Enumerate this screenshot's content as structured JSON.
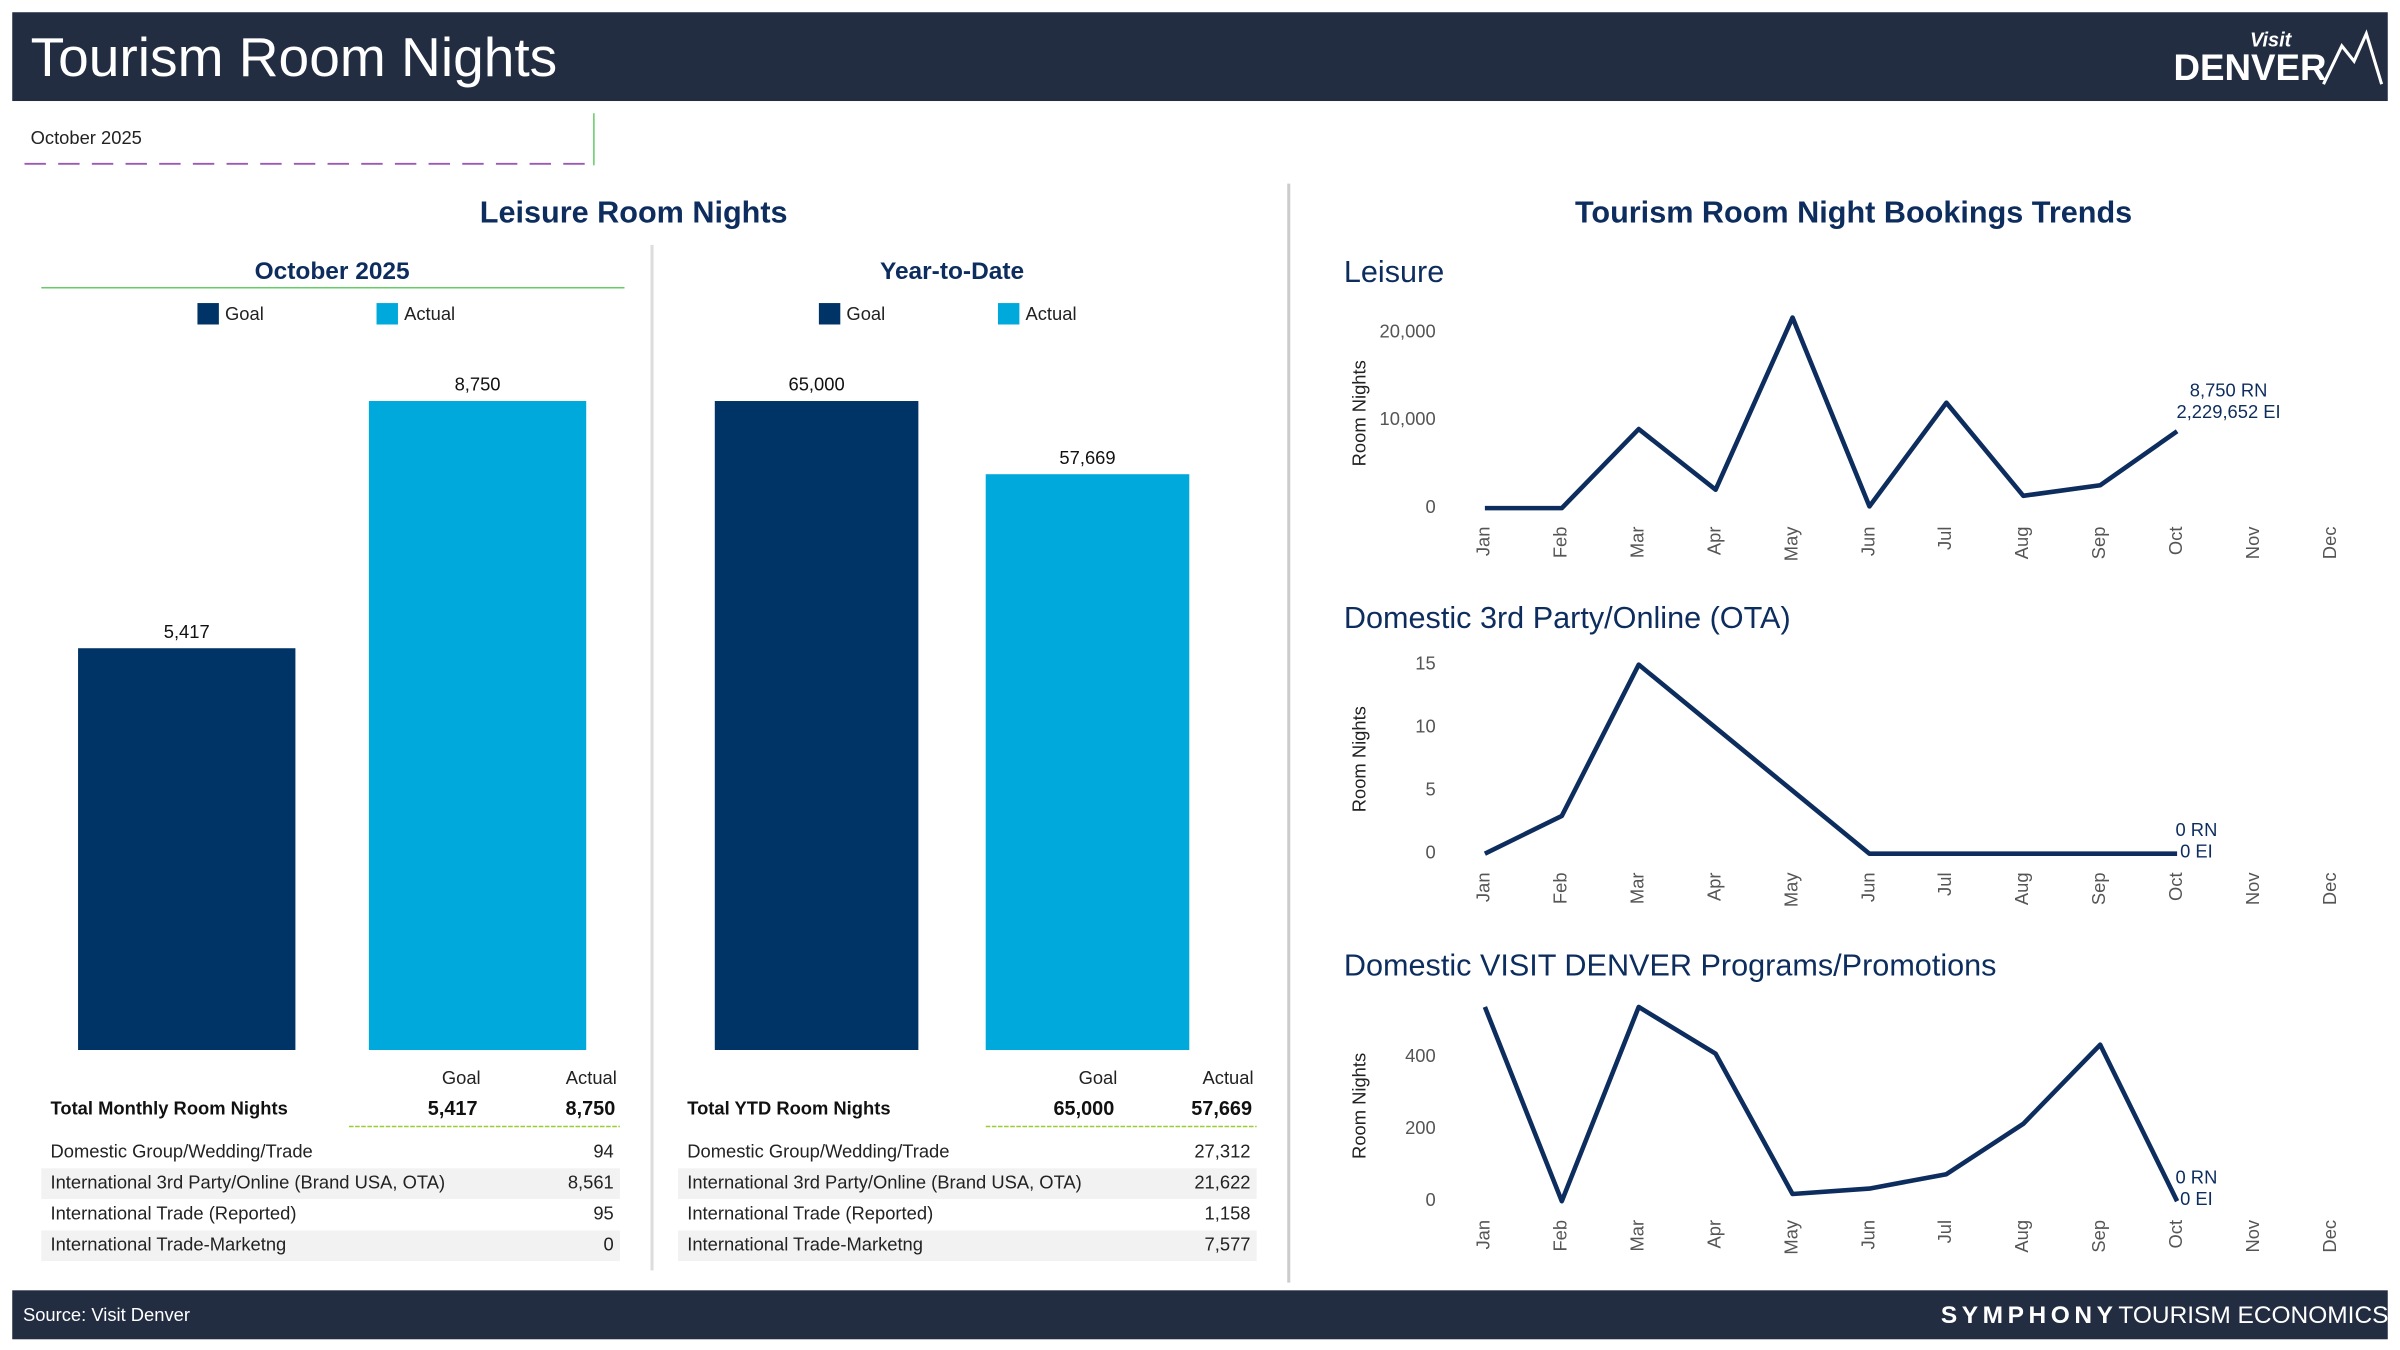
{
  "header": {
    "title": "Tourism Room Nights",
    "logo_top": "Visit",
    "logo_main": "DENVER",
    "filter": "October 2025"
  },
  "left_panel": {
    "title": "Leisure Room Nights"
  },
  "right_panel": {
    "title": "Tourism Room Night Bookings Trends"
  },
  "chart_data": [
    {
      "type": "bar",
      "title": "October 2025",
      "categories": [
        "Goal",
        "Actual"
      ],
      "values": [
        5417,
        8750
      ],
      "value_labels": [
        "5,417",
        "8,750"
      ],
      "colors": [
        "#003366",
        "#00a9db"
      ]
    },
    {
      "type": "bar",
      "title": "Year-to-Date",
      "categories": [
        "Goal",
        "Actual"
      ],
      "values": [
        65000,
        57669
      ],
      "value_labels": [
        "65,000",
        "57,669"
      ],
      "colors": [
        "#003366",
        "#00a9db"
      ]
    },
    {
      "type": "line",
      "title": "Leisure",
      "y_label": "Room Nights",
      "categories": [
        "Jan",
        "Feb",
        "Mar",
        "Apr",
        "May",
        "Jun",
        "Jul",
        "Aug",
        "Sep",
        "Oct",
        "Nov",
        "Dec"
      ],
      "values": [
        0,
        0,
        9000,
        2100,
        21700,
        200,
        12000,
        1400,
        2600,
        8750,
        null,
        null
      ],
      "color": "#0d2d5e",
      "ylim": [
        -1400,
        23000
      ],
      "yticks": [
        0,
        {
          "value": 10000,
          "label": "10,000"
        },
        {
          "value": 20000,
          "label": "20,000"
        }
      ],
      "annotations": [
        "8,750 RN",
        "2,229,652 EI"
      ]
    },
    {
      "type": "line",
      "title": "Domestic 3rd Party/Online (OTA)",
      "y_label": "Room Nights",
      "categories": [
        "Jan",
        "Feb",
        "Mar",
        "Apr",
        "May",
        "Jun",
        "Jul",
        "Aug",
        "Sep",
        "Oct",
        "Nov",
        "Dec"
      ],
      "values": [
        0,
        3,
        15,
        10,
        5,
        0,
        0,
        0,
        0,
        0,
        null,
        null
      ],
      "color": "#0d2d5e",
      "ylim": [
        -1,
        16
      ],
      "yticks": [
        0,
        5,
        10,
        15
      ],
      "annotations": [
        "0 RN",
        "0 EI"
      ]
    },
    {
      "type": "line",
      "title": "Domestic VISIT DENVER Programs/Promotions",
      "y_label": "Room Nights",
      "categories": [
        "Jan",
        "Feb",
        "Mar",
        "Apr",
        "May",
        "Jun",
        "Jul",
        "Aug",
        "Sep",
        "Oct",
        "Nov",
        "Dec"
      ],
      "values": [
        540,
        0,
        540,
        410,
        20,
        35,
        75,
        215,
        435,
        0,
        null,
        null
      ],
      "color": "#0d2d5e",
      "ylim": [
        -35,
        565
      ],
      "yticks": [
        0,
        200,
        400
      ],
      "annotations": [
        "0 RN",
        "0 EI"
      ]
    }
  ],
  "tables": [
    {
      "columns": [
        "Goal",
        "Actual"
      ],
      "total": {
        "label": "Total Monthly Room Nights",
        "goal": "5,417",
        "actual": "8,750"
      },
      "rows": [
        [
          "Domestic Group/Wedding/Trade",
          "94"
        ],
        [
          "International 3rd Party/Online (Brand USA, OTA)",
          "8,561"
        ],
        [
          "International Trade (Reported)",
          "95"
        ],
        [
          "International Trade-Marketng",
          "0"
        ]
      ]
    },
    {
      "columns": [
        "Goal",
        "Actual"
      ],
      "total": {
        "label": "Total YTD Room Nights",
        "goal": "65,000",
        "actual": "57,669"
      },
      "rows": [
        [
          "Domestic Group/Wedding/Trade",
          "27,312"
        ],
        [
          "International 3rd Party/Online (Brand USA, OTA)",
          "21,622"
        ],
        [
          "International Trade (Reported)",
          "1,158"
        ],
        [
          "International Trade-Marketng",
          "7,577"
        ]
      ]
    }
  ],
  "footer": {
    "source": "Source: Visit Denver",
    "brand": "SYMPHONY",
    "brand_sub": "TOURISM ECONOMICS"
  }
}
